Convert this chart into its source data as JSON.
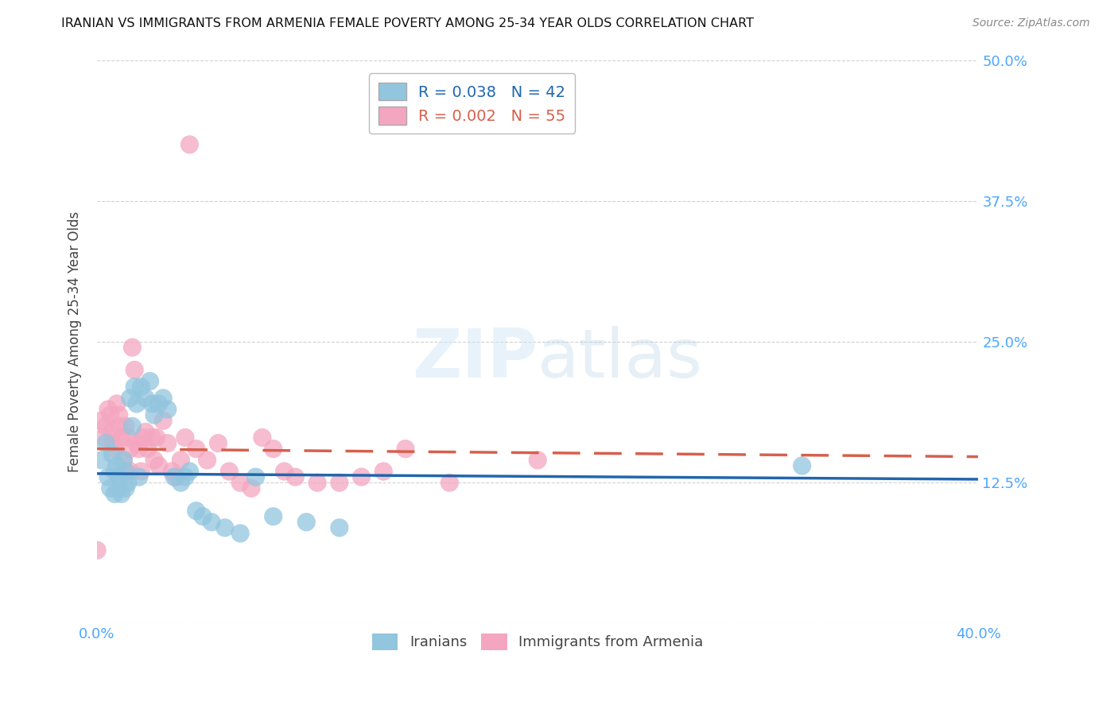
{
  "title": "IRANIAN VS IMMIGRANTS FROM ARMENIA FEMALE POVERTY AMONG 25-34 YEAR OLDS CORRELATION CHART",
  "source": "Source: ZipAtlas.com",
  "ylabel": "Female Poverty Among 25-34 Year Olds",
  "ylim": [
    0.0,
    0.5
  ],
  "xlim": [
    0.0,
    0.4
  ],
  "yticks": [
    0.0,
    0.125,
    0.25,
    0.375,
    0.5
  ],
  "ytick_labels": [
    "",
    "12.5%",
    "25.0%",
    "37.5%",
    "50.0%"
  ],
  "legend1_label": "Iranians",
  "legend2_label": "Immigrants from Armenia",
  "R1": 0.038,
  "N1": 42,
  "R2": 0.002,
  "N2": 55,
  "blue_color": "#92c5de",
  "pink_color": "#f4a6c0",
  "blue_line_color": "#2166ac",
  "pink_line_color": "#d6604d",
  "axis_label_color": "#4da6ff",
  "iranians_x": [
    0.002,
    0.004,
    0.005,
    0.006,
    0.007,
    0.008,
    0.008,
    0.009,
    0.01,
    0.01,
    0.011,
    0.012,
    0.013,
    0.013,
    0.014,
    0.015,
    0.016,
    0.017,
    0.018,
    0.019,
    0.02,
    0.022,
    0.024,
    0.025,
    0.026,
    0.028,
    0.03,
    0.032,
    0.035,
    0.038,
    0.04,
    0.042,
    0.045,
    0.048,
    0.052,
    0.058,
    0.065,
    0.072,
    0.08,
    0.095,
    0.11,
    0.32
  ],
  "iranians_y": [
    0.145,
    0.16,
    0.13,
    0.12,
    0.15,
    0.135,
    0.115,
    0.14,
    0.13,
    0.12,
    0.115,
    0.145,
    0.135,
    0.12,
    0.125,
    0.2,
    0.175,
    0.21,
    0.195,
    0.13,
    0.21,
    0.2,
    0.215,
    0.195,
    0.185,
    0.195,
    0.2,
    0.19,
    0.13,
    0.125,
    0.13,
    0.135,
    0.1,
    0.095,
    0.09,
    0.085,
    0.08,
    0.13,
    0.095,
    0.09,
    0.085,
    0.14
  ],
  "armenia_x": [
    0.0,
    0.002,
    0.003,
    0.004,
    0.005,
    0.006,
    0.007,
    0.007,
    0.008,
    0.009,
    0.01,
    0.01,
    0.011,
    0.012,
    0.012,
    0.013,
    0.014,
    0.015,
    0.015,
    0.016,
    0.017,
    0.018,
    0.019,
    0.02,
    0.021,
    0.022,
    0.023,
    0.025,
    0.026,
    0.027,
    0.028,
    0.03,
    0.032,
    0.034,
    0.036,
    0.038,
    0.04,
    0.042,
    0.045,
    0.05,
    0.055,
    0.06,
    0.065,
    0.07,
    0.075,
    0.08,
    0.085,
    0.09,
    0.1,
    0.11,
    0.12,
    0.13,
    0.14,
    0.16,
    0.2
  ],
  "armenia_y": [
    0.065,
    0.18,
    0.165,
    0.175,
    0.19,
    0.185,
    0.17,
    0.16,
    0.155,
    0.195,
    0.185,
    0.175,
    0.165,
    0.145,
    0.135,
    0.175,
    0.165,
    0.155,
    0.135,
    0.245,
    0.225,
    0.16,
    0.155,
    0.135,
    0.165,
    0.17,
    0.155,
    0.165,
    0.145,
    0.165,
    0.14,
    0.18,
    0.16,
    0.135,
    0.13,
    0.145,
    0.165,
    0.425,
    0.155,
    0.145,
    0.16,
    0.135,
    0.125,
    0.12,
    0.165,
    0.155,
    0.135,
    0.13,
    0.125,
    0.125,
    0.13,
    0.135,
    0.155,
    0.125,
    0.145
  ]
}
